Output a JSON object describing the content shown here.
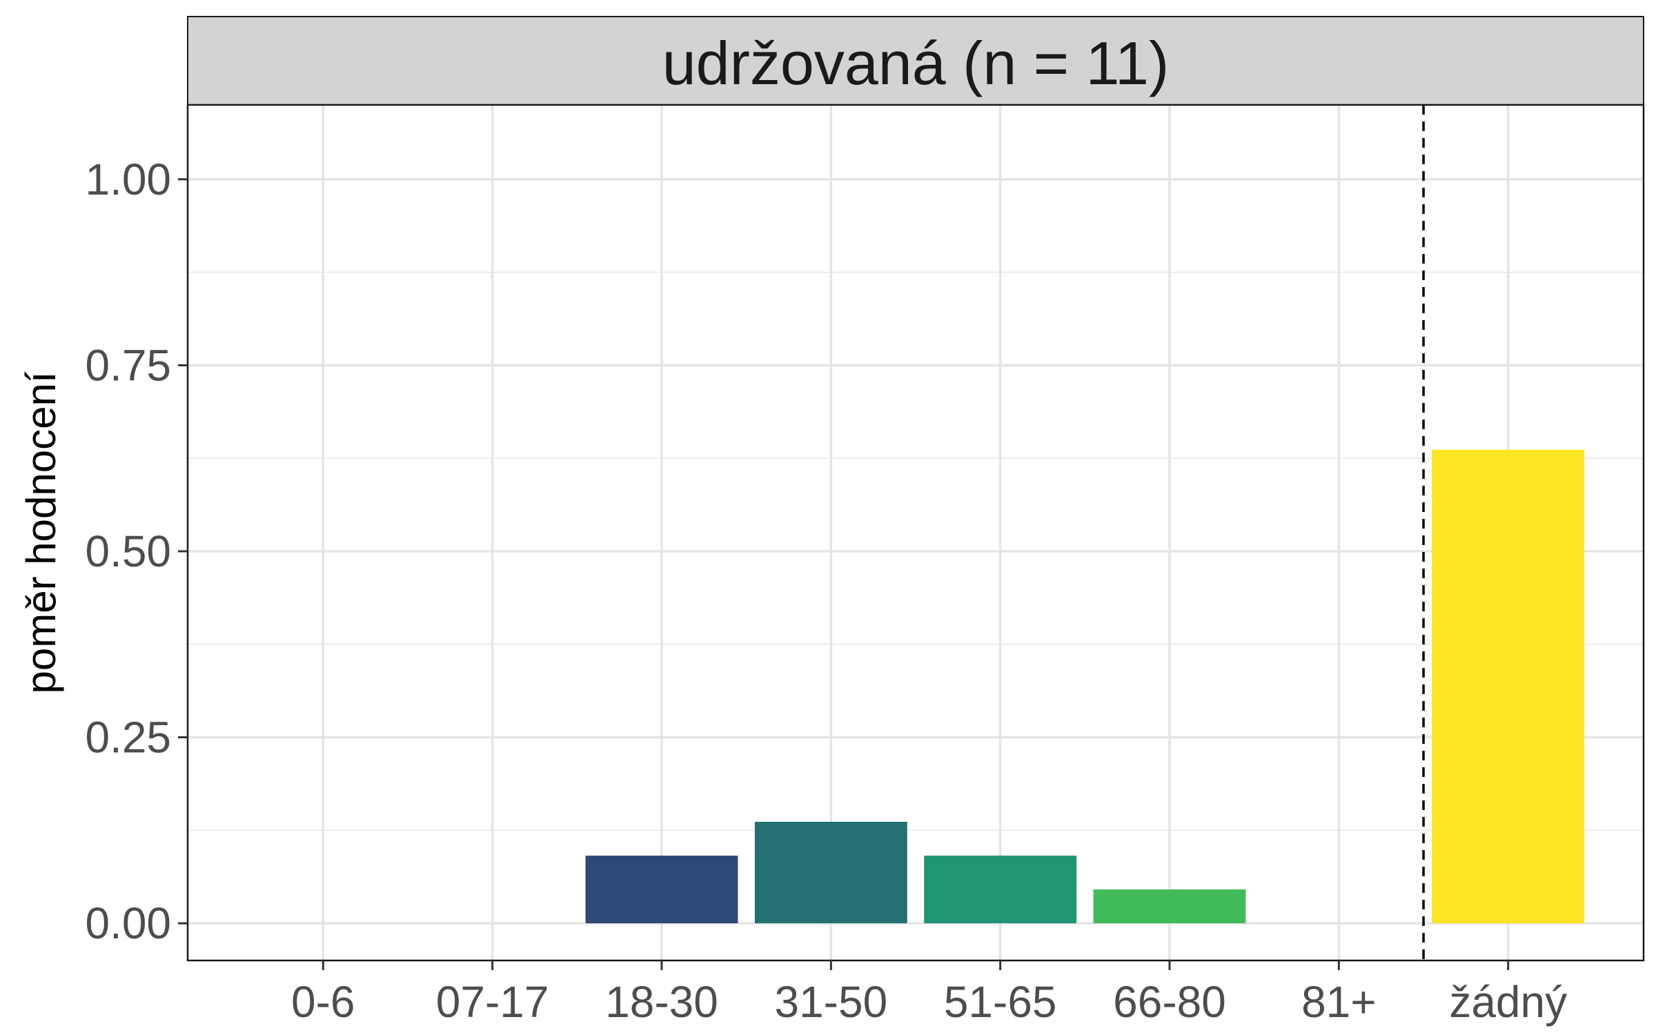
{
  "chart_data": {
    "type": "bar",
    "facet_title": "udržovaná (n = 11)",
    "ylabel": "poměr hodnocení",
    "xlabel": "",
    "categories": [
      "0-6",
      "07-17",
      "18-30",
      "31-50",
      "51-65",
      "66-80",
      "81+",
      "žádný"
    ],
    "values": [
      0,
      0,
      0.0909,
      0.1364,
      0.0909,
      0.0455,
      0,
      0.6364
    ],
    "colors": [
      "#440154",
      "#46327E",
      "#2B497A",
      "#22706F",
      "#1F9574",
      "#41BB59",
      "#8FD744",
      "#FDE725"
    ],
    "ylim": [
      -0.05,
      1.1
    ],
    "yticks": [
      "0.00",
      "0.25",
      "0.50",
      "0.75",
      "1.00"
    ],
    "ytick_values": [
      0,
      0.25,
      0.5,
      0.75,
      1.0
    ],
    "reference_line": {
      "between": [
        "81+",
        "žádný"
      ],
      "style": "dashed"
    },
    "grid": true,
    "legend": "none"
  }
}
